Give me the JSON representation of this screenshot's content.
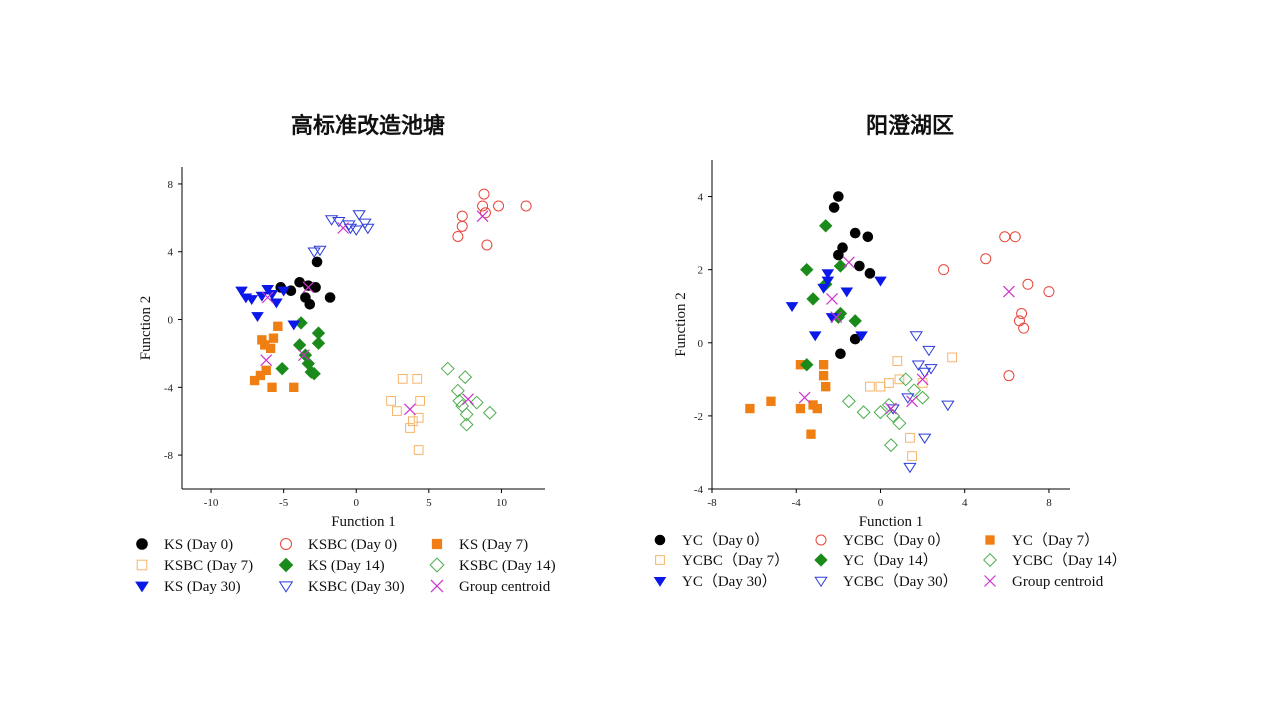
{
  "chart_data": [
    {
      "type": "scatter",
      "title": "高标准改造池塘",
      "xlabel": "Function 1",
      "ylabel": "Function 2",
      "xlim": [
        -12,
        13
      ],
      "ylim": [
        -10,
        9
      ],
      "xticks": [
        -10,
        -5,
        0,
        5,
        10
      ],
      "yticks": [
        8,
        4,
        0,
        -4,
        -8
      ],
      "legend_position": "bottom",
      "series": [
        {
          "name": "KS (Day 0)",
          "marker": "circle-filled",
          "color": "#000000",
          "points": [
            [
              -5.2,
              1.9
            ],
            [
              -4.5,
              1.7
            ],
            [
              -3.9,
              2.2
            ],
            [
              -3.5,
              1.3
            ],
            [
              -3.2,
              0.9
            ],
            [
              -3.3,
              2.0
            ],
            [
              -2.8,
              1.9
            ],
            [
              -2.7,
              3.4
            ],
            [
              -1.8,
              1.3
            ]
          ]
        },
        {
          "name": "KSBC (Day 0)",
          "marker": "circle-open",
          "color": "#e8443a",
          "points": [
            [
              7.0,
              4.9
            ],
            [
              7.3,
              5.5
            ],
            [
              7.3,
              6.1
            ],
            [
              8.7,
              6.7
            ],
            [
              8.8,
              7.4
            ],
            [
              9.0,
              4.4
            ],
            [
              9.8,
              6.7
            ],
            [
              11.7,
              6.7
            ],
            [
              8.9,
              6.3
            ]
          ]
        },
        {
          "name": "KS (Day 7)",
          "marker": "square-filled",
          "color": "#f07f13",
          "points": [
            [
              -7.0,
              -3.6
            ],
            [
              -6.6,
              -3.3
            ],
            [
              -6.5,
              -1.2
            ],
            [
              -6.2,
              -3.0
            ],
            [
              -6.3,
              -1.5
            ],
            [
              -5.9,
              -1.7
            ],
            [
              -5.7,
              -1.1
            ],
            [
              -5.4,
              -0.4
            ],
            [
              -5.8,
              -4.0
            ],
            [
              -4.3,
              -4.0
            ]
          ]
        },
        {
          "name": "KSBC (Day 7)",
          "marker": "square-open",
          "color": "#f7b46a",
          "points": [
            [
              2.4,
              -4.8
            ],
            [
              2.8,
              -5.4
            ],
            [
              3.2,
              -3.5
            ],
            [
              3.7,
              -6.4
            ],
            [
              3.9,
              -6.0
            ],
            [
              4.2,
              -3.5
            ],
            [
              4.3,
              -5.8
            ],
            [
              4.4,
              -4.8
            ],
            [
              4.3,
              -7.7
            ]
          ]
        },
        {
          "name": "KS (Day 14)",
          "marker": "diamond-filled",
          "color": "#1a8a1a",
          "points": [
            [
              -5.1,
              -2.9
            ],
            [
              -3.8,
              -0.2
            ],
            [
              -3.9,
              -1.5
            ],
            [
              -3.5,
              -2.1
            ],
            [
              -3.3,
              -2.6
            ],
            [
              -3.1,
              -3.1
            ],
            [
              -2.9,
              -3.2
            ],
            [
              -2.6,
              -1.4
            ],
            [
              -2.6,
              -0.8
            ]
          ]
        },
        {
          "name": "KSBC (Day 14)",
          "marker": "diamond-open",
          "color": "#4cae4c",
          "points": [
            [
              6.3,
              -2.9
            ],
            [
              7.0,
              -4.2
            ],
            [
              7.1,
              -4.8
            ],
            [
              7.5,
              -3.4
            ],
            [
              7.6,
              -5.6
            ],
            [
              8.3,
              -4.9
            ],
            [
              7.6,
              -6.2
            ],
            [
              9.2,
              -5.5
            ],
            [
              7.3,
              -5.1
            ]
          ]
        },
        {
          "name": "KS (Day 30)",
          "marker": "triangle-down-filled",
          "color": "#0a18e8",
          "points": [
            [
              -7.9,
              1.7
            ],
            [
              -7.6,
              1.3
            ],
            [
              -7.2,
              1.2
            ],
            [
              -6.8,
              0.2
            ],
            [
              -6.5,
              1.4
            ],
            [
              -6.1,
              1.8
            ],
            [
              -5.8,
              1.5
            ],
            [
              -5.5,
              1.0
            ],
            [
              -5.0,
              1.7
            ],
            [
              -4.3,
              -0.3
            ]
          ]
        },
        {
          "name": "KSBC (Day 30)",
          "marker": "triangle-down-open",
          "color": "#2a3bd8",
          "points": [
            [
              -2.9,
              4.0
            ],
            [
              -2.5,
              4.1
            ],
            [
              -1.7,
              5.9
            ],
            [
              -1.2,
              5.8
            ],
            [
              -0.5,
              5.6
            ],
            [
              0.0,
              5.3
            ],
            [
              0.2,
              6.2
            ],
            [
              0.6,
              5.7
            ],
            [
              0.8,
              5.4
            ],
            [
              -0.4,
              5.4
            ]
          ]
        },
        {
          "name": "Group centroid",
          "marker": "x",
          "color": "#cc33cc",
          "points": [
            [
              -6.2,
              -2.4
            ],
            [
              -3.3,
              1.9
            ],
            [
              -3.6,
              -2.1
            ],
            [
              -0.9,
              5.4
            ],
            [
              8.7,
              6.1
            ],
            [
              3.7,
              -5.3
            ],
            [
              7.7,
              -4.7
            ],
            [
              -6.1,
              1.3
            ]
          ]
        }
      ]
    },
    {
      "type": "scatter",
      "title": "阳澄湖区",
      "xlabel": "Function 1",
      "ylabel": "Function 2",
      "xlim": [
        -8,
        9
      ],
      "ylim": [
        -4,
        5
      ],
      "xticks": [
        -8,
        -4,
        0,
        4,
        8
      ],
      "yticks": [
        4,
        2,
        0,
        -2,
        -4
      ],
      "legend_position": "bottom",
      "series": [
        {
          "name": "YC（Day 0）",
          "marker": "circle-filled",
          "color": "#000000",
          "points": [
            [
              -2.0,
              4.0
            ],
            [
              -2.2,
              3.7
            ],
            [
              -1.8,
              2.6
            ],
            [
              -2.0,
              2.4
            ],
            [
              -1.2,
              3.0
            ],
            [
              -0.6,
              2.9
            ],
            [
              -1.0,
              2.1
            ],
            [
              -0.5,
              1.9
            ],
            [
              -1.2,
              0.1
            ],
            [
              -1.9,
              -0.3
            ]
          ]
        },
        {
          "name": "YCBC（Day 0）",
          "marker": "circle-open",
          "color": "#e8443a",
          "points": [
            [
              3.0,
              2.0
            ],
            [
              5.0,
              2.3
            ],
            [
              5.9,
              2.9
            ],
            [
              6.4,
              2.9
            ],
            [
              7.0,
              1.6
            ],
            [
              8.0,
              1.4
            ],
            [
              6.7,
              0.8
            ],
            [
              6.6,
              0.6
            ],
            [
              6.8,
              0.4
            ],
            [
              6.1,
              -0.9
            ]
          ]
        },
        {
          "name": "YC（Day 7）",
          "marker": "square-filled",
          "color": "#f07f13",
          "points": [
            [
              -6.2,
              -1.8
            ],
            [
              -5.2,
              -1.6
            ],
            [
              -3.8,
              -0.6
            ],
            [
              -3.8,
              -1.8
            ],
            [
              -3.2,
              -1.7
            ],
            [
              -3.0,
              -1.8
            ],
            [
              -2.7,
              -0.6
            ],
            [
              -2.7,
              -0.9
            ],
            [
              -2.6,
              -1.2
            ],
            [
              -3.3,
              -2.5
            ]
          ]
        },
        {
          "name": "YCBC（Day 7）",
          "marker": "square-open",
          "color": "#f7b46a",
          "points": [
            [
              -0.5,
              -1.2
            ],
            [
              0.0,
              -1.2
            ],
            [
              0.4,
              -1.1
            ],
            [
              0.8,
              -0.5
            ],
            [
              0.9,
              -1.0
            ],
            [
              1.4,
              -2.6
            ],
            [
              1.5,
              -3.1
            ],
            [
              3.4,
              -0.4
            ],
            [
              2.0,
              -1.1
            ]
          ]
        },
        {
          "name": "YC（Day 14）",
          "marker": "diamond-filled",
          "color": "#1a8a1a",
          "points": [
            [
              -2.6,
              3.2
            ],
            [
              -3.5,
              -0.6
            ],
            [
              -3.5,
              2.0
            ],
            [
              -3.2,
              1.2
            ],
            [
              -2.6,
              1.6
            ],
            [
              -1.9,
              2.1
            ],
            [
              -1.9,
              0.8
            ],
            [
              -1.2,
              0.6
            ],
            [
              -2.0,
              0.7
            ]
          ]
        },
        {
          "name": "YCBC（Day 14）",
          "marker": "diamond-open",
          "color": "#4cae4c",
          "points": [
            [
              -1.5,
              -1.6
            ],
            [
              -0.8,
              -1.9
            ],
            [
              0.0,
              -1.9
            ],
            [
              0.4,
              -1.7
            ],
            [
              0.6,
              -2.0
            ],
            [
              0.5,
              -2.8
            ],
            [
              0.9,
              -2.2
            ],
            [
              1.2,
              -1.0
            ],
            [
              1.6,
              -1.3
            ],
            [
              2.0,
              -1.5
            ]
          ]
        },
        {
          "name": "YC（Day 30）",
          "marker": "triangle-down-filled",
          "color": "#0a18e8",
          "points": [
            [
              -4.2,
              1.0
            ],
            [
              -3.1,
              0.2
            ],
            [
              -2.7,
              1.5
            ],
            [
              -2.5,
              1.9
            ],
            [
              -2.3,
              0.7
            ],
            [
              -1.6,
              1.4
            ],
            [
              -0.9,
              0.2
            ],
            [
              0.0,
              1.7
            ],
            [
              -2.5,
              1.7
            ]
          ]
        },
        {
          "name": "YCBC（Day 30）",
          "marker": "triangle-down-open",
          "color": "#2a3bd8",
          "points": [
            [
              1.7,
              0.2
            ],
            [
              2.3,
              -0.2
            ],
            [
              1.8,
              -0.6
            ],
            [
              2.1,
              -0.8
            ],
            [
              2.4,
              -0.7
            ],
            [
              1.3,
              -1.5
            ],
            [
              3.2,
              -1.7
            ],
            [
              2.1,
              -2.6
            ],
            [
              1.4,
              -3.4
            ],
            [
              0.6,
              -1.8
            ]
          ]
        },
        {
          "name": "Group centroid",
          "marker": "x",
          "color": "#cc33cc",
          "points": [
            [
              -2.3,
              1.2
            ],
            [
              -1.5,
              2.2
            ],
            [
              -2.1,
              0.7
            ],
            [
              -3.6,
              -1.5
            ],
            [
              2.0,
              -1.0
            ],
            [
              0.5,
              -1.8
            ],
            [
              1.5,
              -1.6
            ],
            [
              6.1,
              1.4
            ]
          ]
        }
      ]
    }
  ]
}
